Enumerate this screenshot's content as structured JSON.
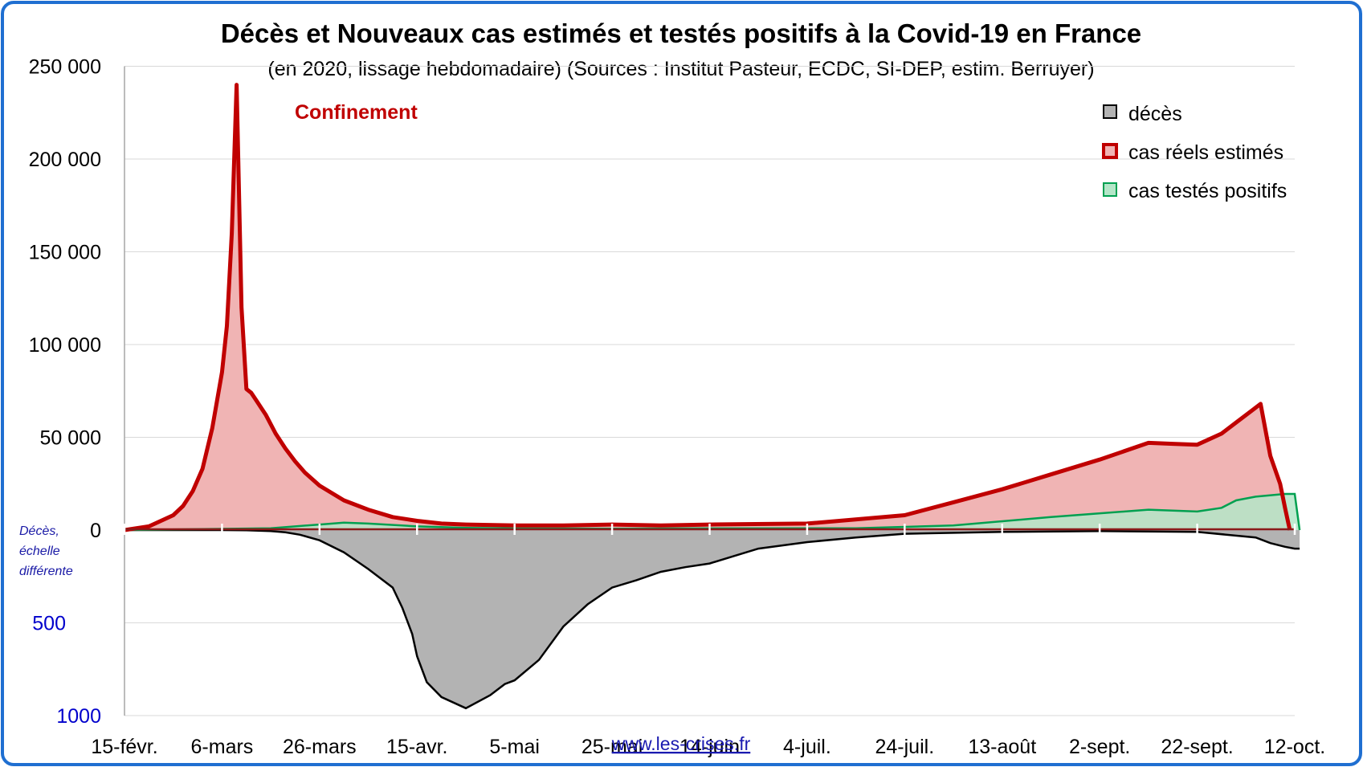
{
  "chart_data": {
    "type": "area",
    "title": "Décès et Nouveaux cas estimés et testés positifs à la Covid-19 en France",
    "subtitle": "(en 2020, lissage hebdomadaire) (Sources : Institut Pasteur, ECDC, SI-DEP, estim. Berruyer)",
    "annotation": "Confinement",
    "side_note": [
      "Décès,",
      "échelle",
      "différente"
    ],
    "source_link": "www.les-crises.fr",
    "x_ticks": [
      "15-févr.",
      "6-mars",
      "26-mars",
      "15-avr.",
      "5-mai",
      "25-mai",
      "14-juin",
      "4-juil.",
      "24-juil.",
      "13-août",
      "2-sept.",
      "22-sept.",
      "12-oct."
    ],
    "x_range_days": [
      0,
      240
    ],
    "y_ticks": [
      "250 000",
      "200 000",
      "150 000",
      "100 000",
      "50 000",
      "0"
    ],
    "y_ticks_secondary": [
      "500",
      "1000"
    ],
    "ylim": [
      -100000,
      250000
    ],
    "deaths_scale_note": "deaths plotted downward on a different scale (1000 deaths ≈ 100 000 cases)",
    "grid": true,
    "legend_position": "top-right",
    "series": [
      {
        "name": "décès",
        "color": "#000000",
        "fill": "#b3b3b3",
        "x": [
          0,
          10,
          20,
          25,
          30,
          33,
          36,
          40,
          45,
          50,
          55,
          57,
          59,
          60,
          62,
          65,
          70,
          75,
          78,
          80,
          85,
          90,
          95,
          100,
          105,
          110,
          115,
          120,
          125,
          130,
          140,
          150,
          160,
          180,
          200,
          220,
          232,
          235,
          238,
          240,
          241
        ],
        "values": [
          0,
          0,
          0,
          1,
          5,
          12,
          25,
          55,
          120,
          210,
          310,
          420,
          560,
          680,
          820,
          900,
          960,
          890,
          830,
          810,
          700,
          520,
          400,
          310,
          270,
          225,
          200,
          180,
          140,
          100,
          65,
          40,
          20,
          10,
          5,
          10,
          40,
          70,
          90,
          100,
          100
        ]
      },
      {
        "name": "cas réels estimés",
        "color": "#c00000",
        "fill": "#f0b4b4",
        "x": [
          0,
          5,
          10,
          12,
          14,
          16,
          18,
          20,
          21,
          22,
          23,
          24,
          25,
          26,
          27,
          29,
          31,
          33,
          35,
          37,
          40,
          45,
          50,
          55,
          60,
          65,
          70,
          80,
          90,
          100,
          110,
          120,
          140,
          160,
          170,
          180,
          190,
          200,
          210,
          215,
          220,
          225,
          228,
          230,
          233,
          235,
          237,
          238,
          239
        ],
        "values": [
          0,
          2000,
          8000,
          13000,
          21000,
          33000,
          55000,
          85000,
          110000,
          160000,
          240000,
          120000,
          76000,
          74000,
          70000,
          62000,
          52000,
          44000,
          37000,
          31000,
          24000,
          16000,
          11000,
          7000,
          5000,
          3500,
          3000,
          2500,
          2500,
          3000,
          2500,
          3000,
          3500,
          8000,
          15000,
          22000,
          30000,
          38000,
          47000,
          46500,
          46000,
          52000,
          58000,
          62000,
          68000,
          40000,
          25000,
          12000,
          0
        ]
      },
      {
        "name": "cas testés positifs",
        "color": "#00a050",
        "fill": "#b4e6c8",
        "x": [
          0,
          30,
          40,
          45,
          50,
          60,
          70,
          80,
          100,
          120,
          150,
          170,
          190,
          210,
          220,
          225,
          228,
          232,
          236,
          238,
          240,
          241
        ],
        "values": [
          0,
          1000,
          3000,
          4000,
          3500,
          2000,
          1200,
          900,
          800,
          900,
          1000,
          2500,
          7000,
          11000,
          10000,
          12000,
          16000,
          18000,
          19000,
          19500,
          19500,
          0
        ]
      }
    ]
  }
}
